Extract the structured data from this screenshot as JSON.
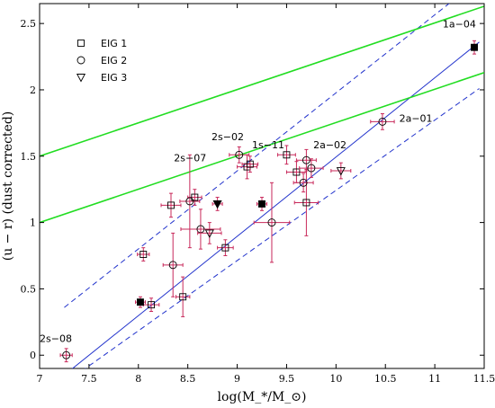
{
  "chart_data": {
    "type": "scatter",
    "xlabel": "log(M_*/M_⊙)",
    "ylabel": "(u − r) (dust corrected)",
    "xlim": [
      7,
      11.5
    ],
    "ylim": [
      -0.1,
      2.65
    ],
    "xticks": [
      "7",
      "7.5",
      "8",
      "8.5",
      "9",
      "9.5",
      "10",
      "10.5",
      "11",
      "11.5"
    ],
    "yticks": [
      "0",
      "0.5",
      "1",
      "1.5",
      "2",
      "2.5"
    ],
    "grid": false,
    "legend_position": "top-left",
    "colors": {
      "errorbar": "#c8285a",
      "fit": "#2233cc",
      "boundary": "#22dd22",
      "marker": "#000000"
    },
    "series": [
      {
        "name": "EIG 1",
        "marker": "square",
        "points": [
          {
            "x": 8.05,
            "y": 0.76,
            "xerr": 0.06,
            "yerr": 0.05
          },
          {
            "x": 8.13,
            "y": 0.38,
            "xerr": 0.08,
            "yerr": 0.05
          },
          {
            "x": 8.33,
            "y": 1.13,
            "xerr": 0.1,
            "yerr": 0.09
          },
          {
            "x": 8.45,
            "y": 0.44,
            "xerr": 0.07,
            "yerr": 0.15
          },
          {
            "x": 8.57,
            "y": 1.19,
            "xerr": 0.07,
            "yerr": 0.06
          },
          {
            "x": 8.88,
            "y": 0.81,
            "xerr": 0.08,
            "yerr": 0.06
          },
          {
            "x": 9.1,
            "y": 1.42,
            "xerr": 0.1,
            "yerr": 0.09
          },
          {
            "x": 9.13,
            "y": 1.44,
            "xerr": 0.08,
            "yerr": 0.06
          },
          {
            "x": 9.5,
            "y": 1.51,
            "xerr": 0.09,
            "yerr": 0.07
          },
          {
            "x": 9.6,
            "y": 1.38,
            "xerr": 0.1,
            "yerr": 0.08
          },
          {
            "x": 9.7,
            "y": 1.15,
            "xerr": 0.12,
            "yerr": 0.25
          }
        ]
      },
      {
        "name": "EIG 2",
        "marker": "circle",
        "points": [
          {
            "x": 7.27,
            "y": 0.0,
            "xerr": 0.06,
            "yerr": 0.05
          },
          {
            "x": 8.35,
            "y": 0.68,
            "xerr": 0.1,
            "yerr": 0.24
          },
          {
            "x": 8.52,
            "y": 1.16,
            "xerr": 0.1,
            "yerr": 0.35
          },
          {
            "x": 8.63,
            "y": 0.95,
            "xerr": 0.2,
            "yerr": 0.15
          },
          {
            "x": 9.02,
            "y": 1.51,
            "xerr": 0.1,
            "yerr": 0.06
          },
          {
            "x": 9.35,
            "y": 1.0,
            "xerr": 0.18,
            "yerr": 0.3
          },
          {
            "x": 9.67,
            "y": 1.3,
            "xerr": 0.1,
            "yerr": 0.07
          },
          {
            "x": 9.7,
            "y": 1.47,
            "xerr": 0.1,
            "yerr": 0.08
          },
          {
            "x": 9.75,
            "y": 1.41,
            "xerr": 0.12,
            "yerr": 0.07
          },
          {
            "x": 10.47,
            "y": 1.76,
            "xerr": 0.12,
            "yerr": 0.06
          }
        ]
      },
      {
        "name": "EIG 3",
        "marker": "triangle-down",
        "points": [
          {
            "x": 8.72,
            "y": 0.92,
            "xerr": 0.12,
            "yerr": 0.08
          },
          {
            "x": 10.05,
            "y": 1.39,
            "xerr": 0.1,
            "yerr": 0.06
          }
        ]
      },
      {
        "marker": "filled",
        "points": [
          {
            "x": 8.02,
            "y": 0.4,
            "shape": "square",
            "xerr": 0.05,
            "yerr": 0.04
          },
          {
            "x": 8.8,
            "y": 1.14,
            "shape": "triangle-down",
            "xerr": 0.05,
            "yerr": 0.05
          },
          {
            "x": 9.25,
            "y": 1.14,
            "shape": "square",
            "xerr": 0.05,
            "yerr": 0.05
          },
          {
            "x": 11.4,
            "y": 2.32,
            "shape": "square",
            "xerr": 0.03,
            "yerr": 0.05
          }
        ]
      }
    ],
    "lines": [
      {
        "role": "fit",
        "style": "solid",
        "color": "#2233cc",
        "x": [
          7.3,
          11.45
        ],
        "y": [
          -0.12,
          2.36
        ]
      },
      {
        "role": "fit-upper",
        "style": "dashed",
        "color": "#2233cc",
        "x": [
          7.25,
          11.45
        ],
        "y": [
          0.36,
          2.83
        ]
      },
      {
        "role": "fit-lower",
        "style": "dashed",
        "color": "#2233cc",
        "x": [
          7.35,
          11.45
        ],
        "y": [
          -0.16,
          2.01
        ]
      },
      {
        "role": "boundary",
        "style": "solid",
        "color": "#22dd22",
        "x": [
          7,
          11.5
        ],
        "y": [
          1.5,
          2.63
        ]
      },
      {
        "role": "boundary",
        "style": "solid",
        "color": "#22dd22",
        "x": [
          7,
          11.5
        ],
        "y": [
          1.0,
          2.13
        ]
      }
    ],
    "annotations": [
      {
        "text": "1a−04",
        "x": 11.08,
        "y": 2.47
      },
      {
        "text": "2a−01",
        "x": 10.64,
        "y": 1.76
      },
      {
        "text": "2s−02",
        "x": 8.74,
        "y": 1.62
      },
      {
        "text": "1s−11",
        "x": 9.15,
        "y": 1.56
      },
      {
        "text": "2a−02",
        "x": 9.77,
        "y": 1.56
      },
      {
        "text": "2s−07",
        "x": 8.36,
        "y": 1.46
      },
      {
        "text": "2s−08",
        "x": 7.0,
        "y": 0.1
      }
    ]
  }
}
